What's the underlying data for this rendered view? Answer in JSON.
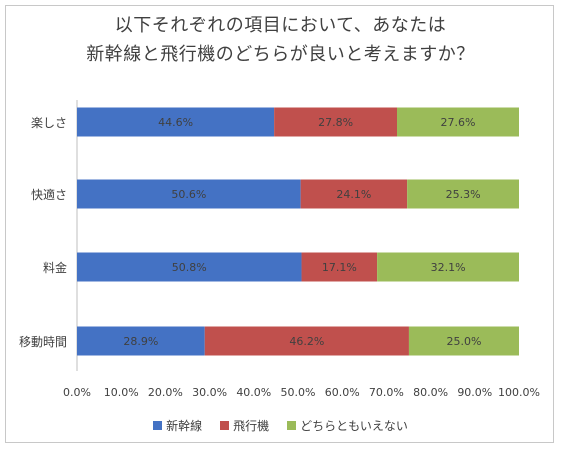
{
  "chart_data": {
    "type": "bar",
    "orientation": "horizontal",
    "stacked": true,
    "title_lines": [
      "以下それぞれの項目において、あなたは",
      "新幹線と飛行機のどちらが良いと考えますか？"
    ],
    "categories": [
      "楽しさ",
      "快適さ",
      "料金",
      "移動時間"
    ],
    "series": [
      {
        "name": "新幹線",
        "color": "#4472c4",
        "values": [
          44.6,
          50.6,
          50.8,
          28.9
        ]
      },
      {
        "name": "飛行機",
        "color": "#c0504d",
        "values": [
          27.8,
          24.1,
          17.1,
          46.2
        ]
      },
      {
        "name": "どちらともいえない",
        "color": "#9bbb59",
        "values": [
          27.6,
          25.3,
          32.1,
          25.0
        ]
      }
    ],
    "data_labels": [
      [
        "44.6%",
        "27.8%",
        "27.6%"
      ],
      [
        "50.6%",
        "24.1%",
        "25.3%"
      ],
      [
        "50.8%",
        "17.1%",
        "32.1%"
      ],
      [
        "28.9%",
        "46.2%",
        "25.0%"
      ]
    ],
    "x_ticks": [
      "0.0%",
      "10.0%",
      "20.0%",
      "30.0%",
      "40.0%",
      "50.0%",
      "60.0%",
      "70.0%",
      "80.0%",
      "90.0%",
      "100.0%"
    ],
    "xlim": [
      0,
      100
    ],
    "legend_position": "bottom",
    "grid": false
  }
}
